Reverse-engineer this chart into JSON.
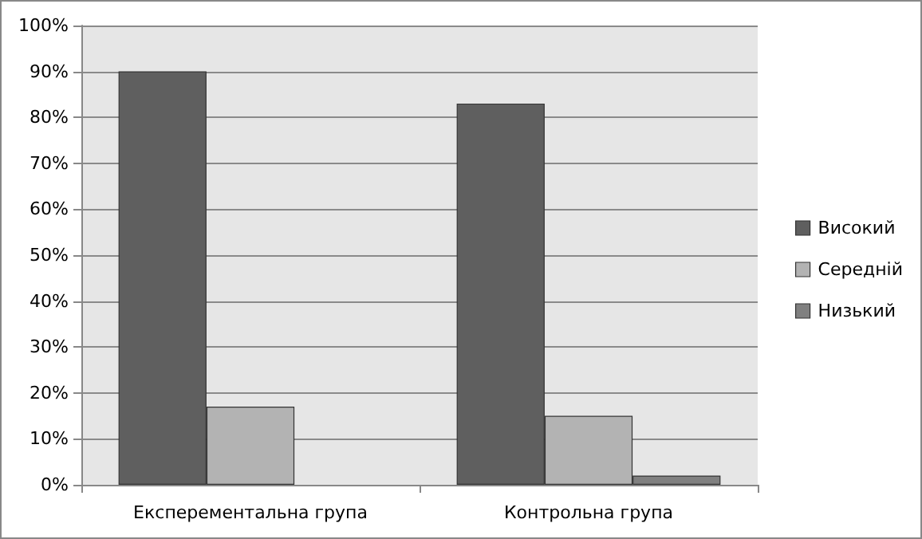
{
  "chart_data": {
    "type": "bar",
    "categories": [
      "Експерементальна група",
      "Контрольна група"
    ],
    "series": [
      {
        "name": "Високий",
        "color": "#5f5f5f",
        "values": [
          90,
          83
        ]
      },
      {
        "name": "Середній",
        "color": "#b3b3b3",
        "values": [
          17,
          15
        ]
      },
      {
        "name": "Низький",
        "color": "#808080",
        "values": [
          null,
          2
        ]
      }
    ],
    "ylim": [
      0,
      100
    ],
    "yticks": [
      {
        "value": 0,
        "label": "0%"
      },
      {
        "value": 10,
        "label": "10%"
      },
      {
        "value": 20,
        "label": "20%"
      },
      {
        "value": 30,
        "label": "30%"
      },
      {
        "value": 40,
        "label": "40%"
      },
      {
        "value": 50,
        "label": "50%"
      },
      {
        "value": 60,
        "label": "60%"
      },
      {
        "value": 70,
        "label": "70%"
      },
      {
        "value": 80,
        "label": "80%"
      },
      {
        "value": 90,
        "label": "90%"
      },
      {
        "value": 100,
        "label": "100%"
      }
    ],
    "grid": "y",
    "legend": "right"
  }
}
